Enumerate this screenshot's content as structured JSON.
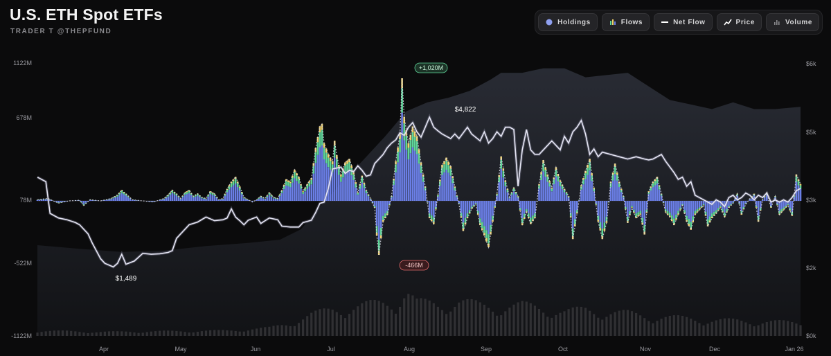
{
  "header": {
    "title": "U.S. ETH Spot ETFs",
    "subtitle": "TRADER T @THEPFUND"
  },
  "toolbar": {
    "buttons": [
      {
        "label": "Holdings",
        "icon": "holdings-dot-icon"
      },
      {
        "label": "Flows",
        "icon": "flows-bars-icon"
      },
      {
        "label": "Net Flow",
        "icon": "net-flow-line-icon"
      },
      {
        "label": "Price",
        "icon": "price-trend-icon"
      },
      {
        "label": "Volume",
        "icon": "volume-bars-icon"
      }
    ]
  },
  "colors": {
    "background": "#0b0b0c",
    "flow_primary": "#6b7fe6",
    "flow_secondary": "#5fd69a",
    "flow_tertiary": "#f1d36b",
    "net_flow_line": "#d9d9e6",
    "price_line": "#e6e6f4",
    "holdings_area": "#22242b",
    "volume_bars": "#303033",
    "positive_badge": "#5fd69a",
    "negative_badge": "#e26b6b"
  },
  "chart_data": {
    "type": "bar",
    "left_axis": {
      "ticks": [
        "1122M",
        "678M",
        "78M",
        "-522M",
        "-1122M"
      ],
      "values": [
        1122,
        678,
        78,
        -522,
        -1122
      ],
      "range": [
        -1122,
        1122
      ]
    },
    "right_axis": {
      "ticks": [
        "$6k",
        "$5k",
        "$3k",
        "$2k",
        "$0k"
      ],
      "values": [
        6000,
        5000,
        3000,
        2000,
        0
      ],
      "range": [
        0,
        6000
      ]
    },
    "x_ticks": [
      "Apr",
      "May",
      "Jun",
      "Jul",
      "Aug",
      "Sep",
      "Oct",
      "Nov",
      "Dec",
      "Jan 26"
    ],
    "annotations": {
      "max_flow": "+1,020M",
      "min_flow": "-466M",
      "price_high": "$4,822",
      "price_low": "$1,489"
    },
    "flow_anchors_day_value": [
      [
        0,
        10
      ],
      [
        5,
        20
      ],
      [
        10,
        -20
      ],
      [
        15,
        0
      ],
      [
        20,
        5
      ],
      [
        22,
        -40
      ],
      [
        25,
        10
      ],
      [
        30,
        0
      ],
      [
        35,
        20
      ],
      [
        38,
        50
      ],
      [
        40,
        90
      ],
      [
        42,
        60
      ],
      [
        45,
        10
      ],
      [
        50,
        0
      ],
      [
        55,
        -10
      ],
      [
        60,
        20
      ],
      [
        62,
        50
      ],
      [
        64,
        90
      ],
      [
        66,
        60
      ],
      [
        68,
        20
      ],
      [
        70,
        70
      ],
      [
        72,
        90
      ],
      [
        74,
        40
      ],
      [
        76,
        60
      ],
      [
        78,
        30
      ],
      [
        80,
        20
      ],
      [
        82,
        80
      ],
      [
        84,
        60
      ],
      [
        86,
        10
      ],
      [
        88,
        20
      ],
      [
        90,
        100
      ],
      [
        92,
        160
      ],
      [
        94,
        200
      ],
      [
        96,
        120
      ],
      [
        98,
        30
      ],
      [
        100,
        10
      ],
      [
        102,
        -10
      ],
      [
        104,
        10
      ],
      [
        106,
        40
      ],
      [
        108,
        20
      ],
      [
        110,
        70
      ],
      [
        112,
        30
      ],
      [
        114,
        20
      ],
      [
        116,
        90
      ],
      [
        118,
        180
      ],
      [
        120,
        160
      ],
      [
        122,
        260
      ],
      [
        124,
        200
      ],
      [
        126,
        80
      ],
      [
        128,
        140
      ],
      [
        130,
        190
      ],
      [
        132,
        440
      ],
      [
        134,
        620
      ],
      [
        135,
        640
      ],
      [
        136,
        480
      ],
      [
        138,
        390
      ],
      [
        140,
        330
      ],
      [
        141,
        500
      ],
      [
        142,
        380
      ],
      [
        144,
        220
      ],
      [
        146,
        320
      ],
      [
        148,
        350
      ],
      [
        150,
        240
      ],
      [
        152,
        70
      ],
      [
        154,
        210
      ],
      [
        156,
        90
      ],
      [
        158,
        20
      ],
      [
        160,
        -60
      ],
      [
        161,
        -300
      ],
      [
        162,
        -466
      ],
      [
        164,
        -180
      ],
      [
        166,
        -120
      ],
      [
        168,
        40
      ],
      [
        170,
        330
      ],
      [
        172,
        560
      ],
      [
        173,
        1020
      ],
      [
        174,
        700
      ],
      [
        176,
        480
      ],
      [
        178,
        620
      ],
      [
        180,
        540
      ],
      [
        182,
        320
      ],
      [
        184,
        120
      ],
      [
        186,
        -150
      ],
      [
        188,
        -200
      ],
      [
        190,
        50
      ],
      [
        192,
        300
      ],
      [
        194,
        360
      ],
      [
        196,
        290
      ],
      [
        198,
        120
      ],
      [
        200,
        -30
      ],
      [
        202,
        -260
      ],
      [
        204,
        -150
      ],
      [
        206,
        -70
      ],
      [
        208,
        -30
      ],
      [
        210,
        -210
      ],
      [
        212,
        -300
      ],
      [
        214,
        -400
      ],
      [
        216,
        -180
      ],
      [
        218,
        60
      ],
      [
        220,
        370
      ],
      [
        222,
        170
      ],
      [
        224,
        30
      ],
      [
        226,
        110
      ],
      [
        228,
        40
      ],
      [
        230,
        -210
      ],
      [
        232,
        -100
      ],
      [
        234,
        -200
      ],
      [
        236,
        -150
      ],
      [
        238,
        140
      ],
      [
        240,
        340
      ],
      [
        242,
        220
      ],
      [
        244,
        110
      ],
      [
        246,
        280
      ],
      [
        248,
        170
      ],
      [
        250,
        100
      ],
      [
        252,
        40
      ],
      [
        254,
        -330
      ],
      [
        256,
        -110
      ],
      [
        258,
        130
      ],
      [
        260,
        250
      ],
      [
        262,
        350
      ],
      [
        264,
        110
      ],
      [
        266,
        -180
      ],
      [
        268,
        -330
      ],
      [
        270,
        -190
      ],
      [
        272,
        160
      ],
      [
        274,
        310
      ],
      [
        276,
        160
      ],
      [
        278,
        40
      ],
      [
        280,
        -190
      ],
      [
        282,
        -60
      ],
      [
        284,
        -150
      ],
      [
        286,
        -120
      ],
      [
        288,
        -290
      ],
      [
        290,
        80
      ],
      [
        292,
        160
      ],
      [
        294,
        200
      ],
      [
        296,
        60
      ],
      [
        298,
        -100
      ],
      [
        300,
        -140
      ],
      [
        302,
        -210
      ],
      [
        304,
        -120
      ],
      [
        306,
        -40
      ],
      [
        308,
        -180
      ],
      [
        310,
        -250
      ],
      [
        312,
        -120
      ],
      [
        314,
        -80
      ],
      [
        316,
        -40
      ],
      [
        318,
        -220
      ],
      [
        320,
        -150
      ],
      [
        322,
        -110
      ],
      [
        324,
        -60
      ],
      [
        326,
        -140
      ],
      [
        328,
        -60
      ],
      [
        330,
        -20
      ],
      [
        332,
        60
      ],
      [
        334,
        -120
      ],
      [
        336,
        -30
      ],
      [
        338,
        20
      ],
      [
        340,
        60
      ],
      [
        342,
        -180
      ],
      [
        344,
        10
      ],
      [
        346,
        70
      ],
      [
        348,
        -60
      ],
      [
        350,
        40
      ],
      [
        352,
        -120
      ],
      [
        354,
        -80
      ],
      [
        356,
        -40
      ],
      [
        358,
        -130
      ],
      [
        360,
        220
      ],
      [
        362,
        140
      ]
    ],
    "price_anchors_day_value": [
      [
        0,
        3500
      ],
      [
        4,
        3400
      ],
      [
        6,
        2700
      ],
      [
        10,
        2600
      ],
      [
        14,
        2560
      ],
      [
        18,
        2500
      ],
      [
        20,
        2450
      ],
      [
        24,
        2250
      ],
      [
        26,
        2050
      ],
      [
        30,
        1700
      ],
      [
        32,
        1600
      ],
      [
        36,
        1520
      ],
      [
        38,
        1600
      ],
      [
        40,
        1800
      ],
      [
        42,
        1580
      ],
      [
        46,
        1650
      ],
      [
        50,
        1820
      ],
      [
        54,
        1800
      ],
      [
        58,
        1810
      ],
      [
        62,
        1840
      ],
      [
        64,
        1880
      ],
      [
        66,
        2150
      ],
      [
        68,
        2250
      ],
      [
        72,
        2450
      ],
      [
        76,
        2510
      ],
      [
        80,
        2620
      ],
      [
        84,
        2540
      ],
      [
        88,
        2560
      ],
      [
        90,
        2600
      ],
      [
        92,
        2800
      ],
      [
        94,
        2620
      ],
      [
        96,
        2540
      ],
      [
        98,
        2450
      ],
      [
        100,
        2550
      ],
      [
        104,
        2620
      ],
      [
        106,
        2480
      ],
      [
        110,
        2600
      ],
      [
        114,
        2560
      ],
      [
        116,
        2420
      ],
      [
        120,
        2400
      ],
      [
        124,
        2400
      ],
      [
        126,
        2500
      ],
      [
        130,
        2550
      ],
      [
        132,
        2720
      ],
      [
        134,
        2920
      ],
      [
        136,
        2950
      ],
      [
        138,
        3250
      ],
      [
        140,
        3680
      ],
      [
        144,
        3720
      ],
      [
        146,
        3580
      ],
      [
        148,
        3650
      ],
      [
        150,
        3620
      ],
      [
        152,
        3750
      ],
      [
        154,
        3650
      ],
      [
        156,
        3520
      ],
      [
        158,
        3550
      ],
      [
        160,
        3800
      ],
      [
        162,
        3900
      ],
      [
        164,
        4000
      ],
      [
        166,
        4150
      ],
      [
        168,
        4250
      ],
      [
        170,
        4320
      ],
      [
        172,
        4480
      ],
      [
        174,
        4420
      ],
      [
        176,
        4600
      ],
      [
        178,
        4700
      ],
      [
        180,
        4500
      ],
      [
        182,
        4380
      ],
      [
        184,
        4600
      ],
      [
        186,
        4822
      ],
      [
        188,
        4600
      ],
      [
        190,
        4520
      ],
      [
        192,
        4450
      ],
      [
        194,
        4400
      ],
      [
        196,
        4350
      ],
      [
        198,
        4450
      ],
      [
        200,
        4350
      ],
      [
        204,
        4600
      ],
      [
        206,
        4450
      ],
      [
        210,
        4300
      ],
      [
        212,
        4500
      ],
      [
        214,
        4250
      ],
      [
        216,
        4350
      ],
      [
        218,
        4500
      ],
      [
        220,
        4400
      ],
      [
        222,
        4600
      ],
      [
        224,
        4600
      ],
      [
        226,
        4550
      ],
      [
        228,
        3300
      ],
      [
        230,
        4100
      ],
      [
        232,
        4550
      ],
      [
        234,
        4100
      ],
      [
        236,
        4000
      ],
      [
        238,
        4000
      ],
      [
        240,
        4100
      ],
      [
        244,
        4300
      ],
      [
        248,
        4100
      ],
      [
        250,
        4400
      ],
      [
        252,
        4250
      ],
      [
        254,
        4500
      ],
      [
        256,
        4600
      ],
      [
        258,
        4750
      ],
      [
        260,
        4450
      ],
      [
        262,
        4000
      ],
      [
        264,
        4120
      ],
      [
        266,
        3950
      ],
      [
        268,
        4050
      ],
      [
        272,
        4000
      ],
      [
        276,
        3950
      ],
      [
        280,
        3900
      ],
      [
        284,
        3950
      ],
      [
        288,
        3900
      ],
      [
        290,
        3880
      ],
      [
        292,
        3900
      ],
      [
        296,
        4000
      ],
      [
        298,
        3850
      ],
      [
        302,
        3600
      ],
      [
        304,
        3450
      ],
      [
        306,
        3500
      ],
      [
        308,
        3300
      ],
      [
        310,
        3400
      ],
      [
        312,
        3100
      ],
      [
        314,
        3050
      ],
      [
        316,
        3000
      ],
      [
        320,
        2900
      ],
      [
        322,
        3000
      ],
      [
        324,
        2950
      ],
      [
        326,
        2850
      ],
      [
        328,
        3050
      ],
      [
        330,
        3100
      ],
      [
        332,
        3000
      ],
      [
        334,
        3050
      ],
      [
        336,
        3150
      ],
      [
        338,
        3100
      ],
      [
        340,
        3000
      ],
      [
        342,
        3100
      ],
      [
        344,
        3050
      ],
      [
        346,
        3150
      ],
      [
        348,
        2950
      ],
      [
        350,
        3000
      ],
      [
        352,
        2950
      ],
      [
        354,
        3000
      ],
      [
        356,
        2950
      ],
      [
        358,
        3050
      ],
      [
        360,
        3200
      ],
      [
        362,
        3250
      ]
    ],
    "holdings_anchors_day_value": [
      [
        0,
        2000
      ],
      [
        20,
        1920
      ],
      [
        40,
        1850
      ],
      [
        60,
        1880
      ],
      [
        80,
        1980
      ],
      [
        100,
        2050
      ],
      [
        115,
        2120
      ],
      [
        125,
        2350
      ],
      [
        135,
        2900
      ],
      [
        145,
        3400
      ],
      [
        155,
        3900
      ],
      [
        165,
        4400
      ],
      [
        175,
        4950
      ],
      [
        185,
        5150
      ],
      [
        195,
        5250
      ],
      [
        205,
        5400
      ],
      [
        215,
        5650
      ],
      [
        220,
        5800
      ],
      [
        230,
        5800
      ],
      [
        240,
        5900
      ],
      [
        250,
        5900
      ],
      [
        260,
        5700
      ],
      [
        270,
        5750
      ],
      [
        280,
        5800
      ],
      [
        290,
        5500
      ],
      [
        300,
        5200
      ],
      [
        310,
        5100
      ],
      [
        320,
        5000
      ],
      [
        330,
        5150
      ],
      [
        340,
        5000
      ],
      [
        350,
        5000
      ],
      [
        362,
        5050
      ]
    ],
    "volume_anchors_day_value": [
      [
        0,
        40
      ],
      [
        30,
        30
      ],
      [
        60,
        35
      ],
      [
        90,
        40
      ],
      [
        110,
        60
      ],
      [
        120,
        100
      ],
      [
        130,
        160
      ],
      [
        140,
        200
      ],
      [
        150,
        220
      ],
      [
        160,
        240
      ],
      [
        170,
        260
      ],
      [
        175,
        340
      ],
      [
        180,
        250
      ],
      [
        190,
        240
      ],
      [
        200,
        260
      ],
      [
        210,
        230
      ],
      [
        220,
        220
      ],
      [
        230,
        230
      ],
      [
        240,
        210
      ],
      [
        250,
        180
      ],
      [
        260,
        200
      ],
      [
        270,
        180
      ],
      [
        280,
        170
      ],
      [
        290,
        150
      ],
      [
        300,
        140
      ],
      [
        310,
        130
      ],
      [
        320,
        120
      ],
      [
        340,
        110
      ],
      [
        362,
        100
      ]
    ]
  }
}
